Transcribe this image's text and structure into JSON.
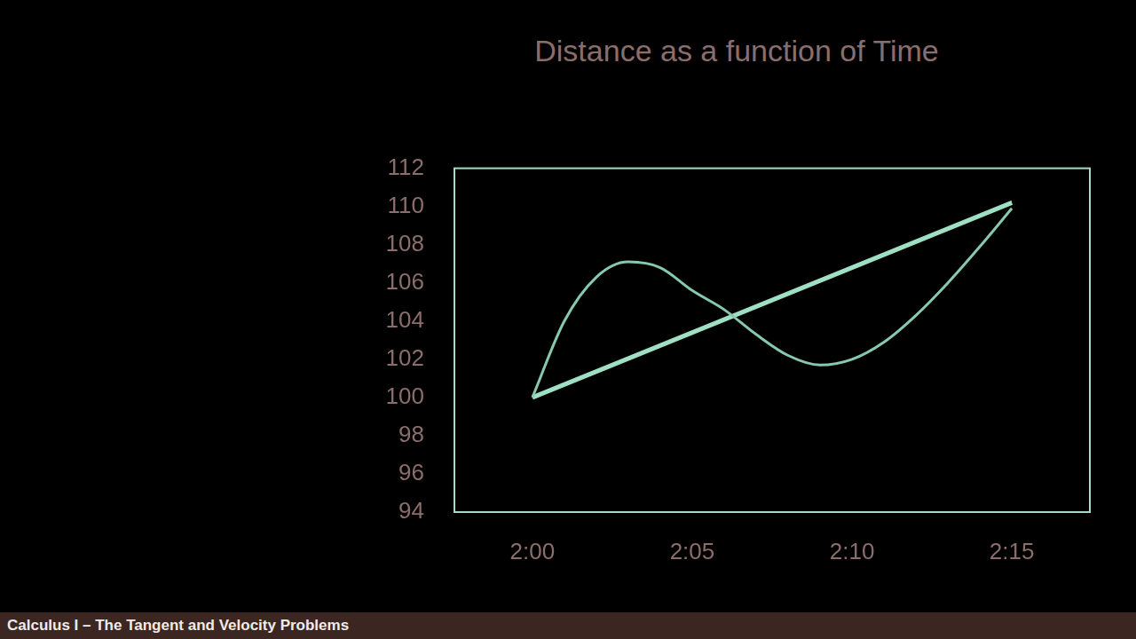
{
  "chart_data": {
    "type": "line",
    "title": "Distance as a function of Time",
    "series": [
      {
        "color": "#86c9ae",
        "line_style": "solid",
        "x": [
          120,
          121,
          122,
          123,
          124,
          125,
          126,
          127,
          128,
          129,
          130,
          131,
          132,
          133,
          134,
          135
        ],
        "values": [
          100,
          104.0,
          106.3,
          107.1,
          106.8,
          105.6,
          104.6,
          103.3,
          102.2,
          101.7,
          102.0,
          102.9,
          104.3,
          106.0,
          107.9,
          109.9
        ]
      },
      {
        "color": "#9fe0c4",
        "line_style": "solid",
        "x": [
          120,
          135
        ],
        "values": [
          100,
          110.2
        ]
      }
    ],
    "xlim": [
      117.56,
      137.44
    ],
    "xticks": [
      {
        "value": 120,
        "label": "2:00"
      },
      {
        "value": 125,
        "label": "2:05"
      },
      {
        "value": 130,
        "label": "2:10"
      },
      {
        "value": 135,
        "label": "2:15"
      }
    ],
    "ylim": [
      94,
      112
    ],
    "yticks": [
      94,
      96,
      98,
      100,
      102,
      104,
      106,
      108,
      110,
      112
    ],
    "grid": false
  },
  "footer": "Calculus I – The Tangent and Velocity Problems"
}
